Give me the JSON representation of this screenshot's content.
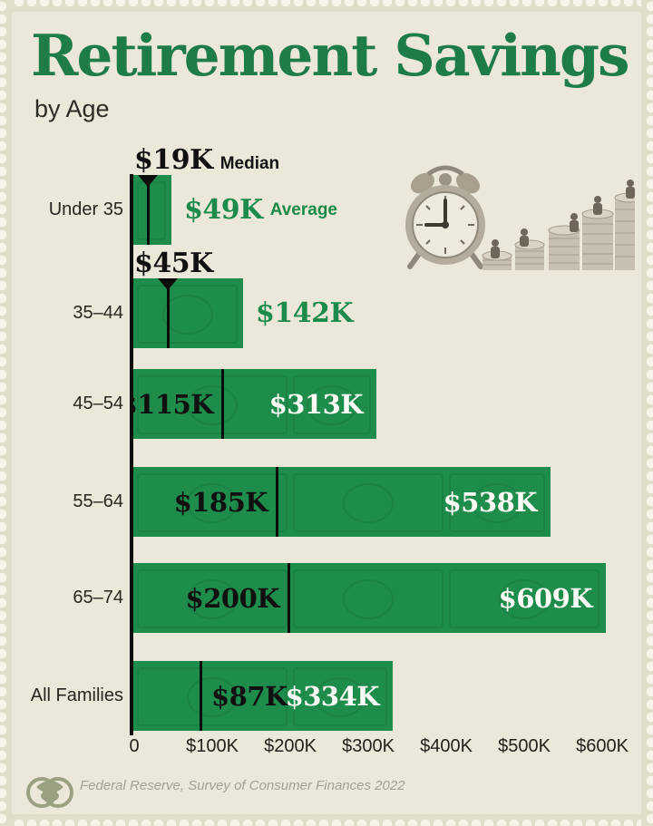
{
  "page": {
    "title": "Retirement Savings",
    "subtitle": "by Age",
    "source": "Federal Reserve, Survey of Consumer Finances 2022"
  },
  "legend": {
    "median_word": "Median",
    "average_word": "Average"
  },
  "axis": {
    "ticks": [
      "0",
      "$100K",
      "$200K",
      "$300K",
      "$400K",
      "$500K",
      "$600K"
    ]
  },
  "colors": {
    "background": "#ebe8d9",
    "bar_green": "#1e8c4b",
    "title_green": "#1e7c48",
    "average_green": "#1b8a4a",
    "text_black": "#101010",
    "value_white": "#fdfcf7",
    "source_gray": "#a3a092"
  },
  "icons": {
    "decorative": "alarm-clock-and-coin-stacks-illustration",
    "logo": "publisher-logo"
  },
  "chart_data": {
    "type": "bar",
    "orientation": "horizontal",
    "title": "Retirement Savings",
    "subtitle": "by Age",
    "categories": [
      "Under 35",
      "35–44",
      "45–54",
      "55–64",
      "65–74",
      "All Families"
    ],
    "series": [
      {
        "name": "Median",
        "values_k": [
          19,
          45,
          115,
          185,
          200,
          87
        ],
        "labels": [
          "$19K",
          "$45K",
          "$115K",
          "$185K",
          "$200K",
          "$87K"
        ]
      },
      {
        "name": "Average",
        "values_k": [
          49,
          142,
          313,
          538,
          609,
          334
        ],
        "labels": [
          "$49K",
          "$142K",
          "$313K",
          "$538K",
          "$609K",
          "$334K"
        ]
      }
    ],
    "x_axis": {
      "min": 0,
      "max": 600000,
      "tick_step": 100000,
      "unit": "USD"
    },
    "legend_position": "first-row-inline",
    "grid": false,
    "source": "Federal Reserve, Survey of Consumer Finances 2022"
  }
}
